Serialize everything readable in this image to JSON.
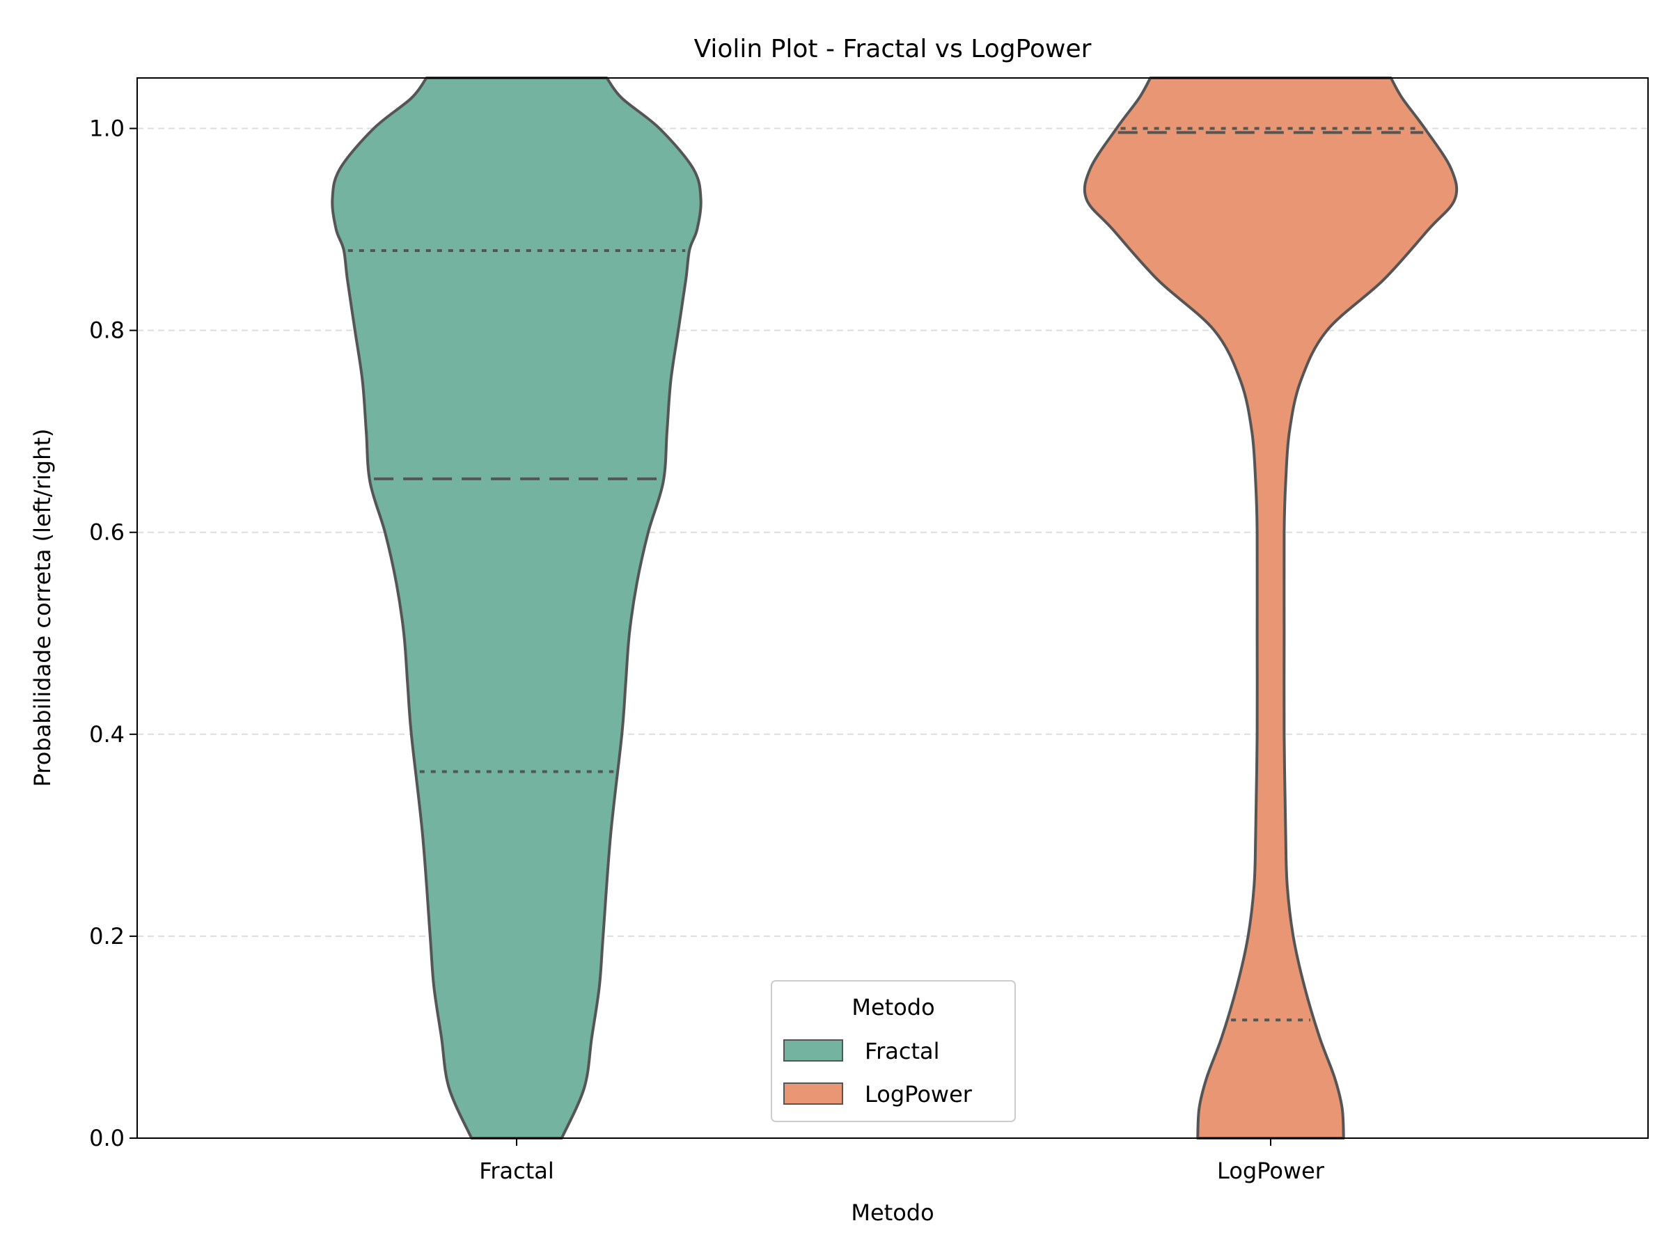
{
  "chart_data": {
    "type": "violin",
    "title": "Violin Plot - Fractal vs LogPower",
    "xlabel": "Metodo",
    "ylabel": "Probabilidade correta (left/right)",
    "categories": [
      "Fractal",
      "LogPower"
    ],
    "ylim": [
      0,
      1.05
    ],
    "yticks": [
      "0.0",
      "0.2",
      "0.4",
      "0.6",
      "0.8",
      "1.0"
    ],
    "grid": "y-dashed",
    "legend": {
      "title": "Metodo",
      "placement": "lower-center",
      "entries": [
        "Fractal",
        "LogPower"
      ]
    },
    "series": [
      {
        "name": "Fractal",
        "color": "#73b3a0",
        "quartiles": {
          "q1": 0.363,
          "median": 0.653,
          "q3": 0.879
        },
        "density_halfwidth": [
          [
            0.0,
            0.06
          ],
          [
            0.05,
            0.09
          ],
          [
            0.1,
            0.1
          ],
          [
            0.15,
            0.11
          ],
          [
            0.2,
            0.115
          ],
          [
            0.3,
            0.125
          ],
          [
            0.4,
            0.14
          ],
          [
            0.45,
            0.145
          ],
          [
            0.5,
            0.15
          ],
          [
            0.55,
            0.16
          ],
          [
            0.6,
            0.175
          ],
          [
            0.65,
            0.195
          ],
          [
            0.7,
            0.2
          ],
          [
            0.75,
            0.205
          ],
          [
            0.8,
            0.215
          ],
          [
            0.85,
            0.225
          ],
          [
            0.88,
            0.23
          ],
          [
            0.9,
            0.24
          ],
          [
            0.93,
            0.245
          ],
          [
            0.96,
            0.235
          ],
          [
            1.0,
            0.19
          ],
          [
            1.03,
            0.14
          ],
          [
            1.05,
            0.12
          ]
        ]
      },
      {
        "name": "LogPower",
        "color": "#e89674",
        "quartiles": {
          "q1": 0.117,
          "median": 0.996,
          "q3": 1.0
        },
        "density_halfwidth": [
          [
            0.0,
            0.097
          ],
          [
            0.03,
            0.095
          ],
          [
            0.06,
            0.085
          ],
          [
            0.1,
            0.065
          ],
          [
            0.15,
            0.045
          ],
          [
            0.2,
            0.03
          ],
          [
            0.25,
            0.022
          ],
          [
            0.3,
            0.02
          ],
          [
            0.4,
            0.018
          ],
          [
            0.5,
            0.018
          ],
          [
            0.6,
            0.018
          ],
          [
            0.65,
            0.02
          ],
          [
            0.7,
            0.025
          ],
          [
            0.75,
            0.04
          ],
          [
            0.8,
            0.075
          ],
          [
            0.85,
            0.15
          ],
          [
            0.9,
            0.21
          ],
          [
            0.93,
            0.245
          ],
          [
            0.96,
            0.24
          ],
          [
            1.0,
            0.205
          ],
          [
            1.03,
            0.175
          ],
          [
            1.05,
            0.16
          ]
        ]
      }
    ]
  }
}
